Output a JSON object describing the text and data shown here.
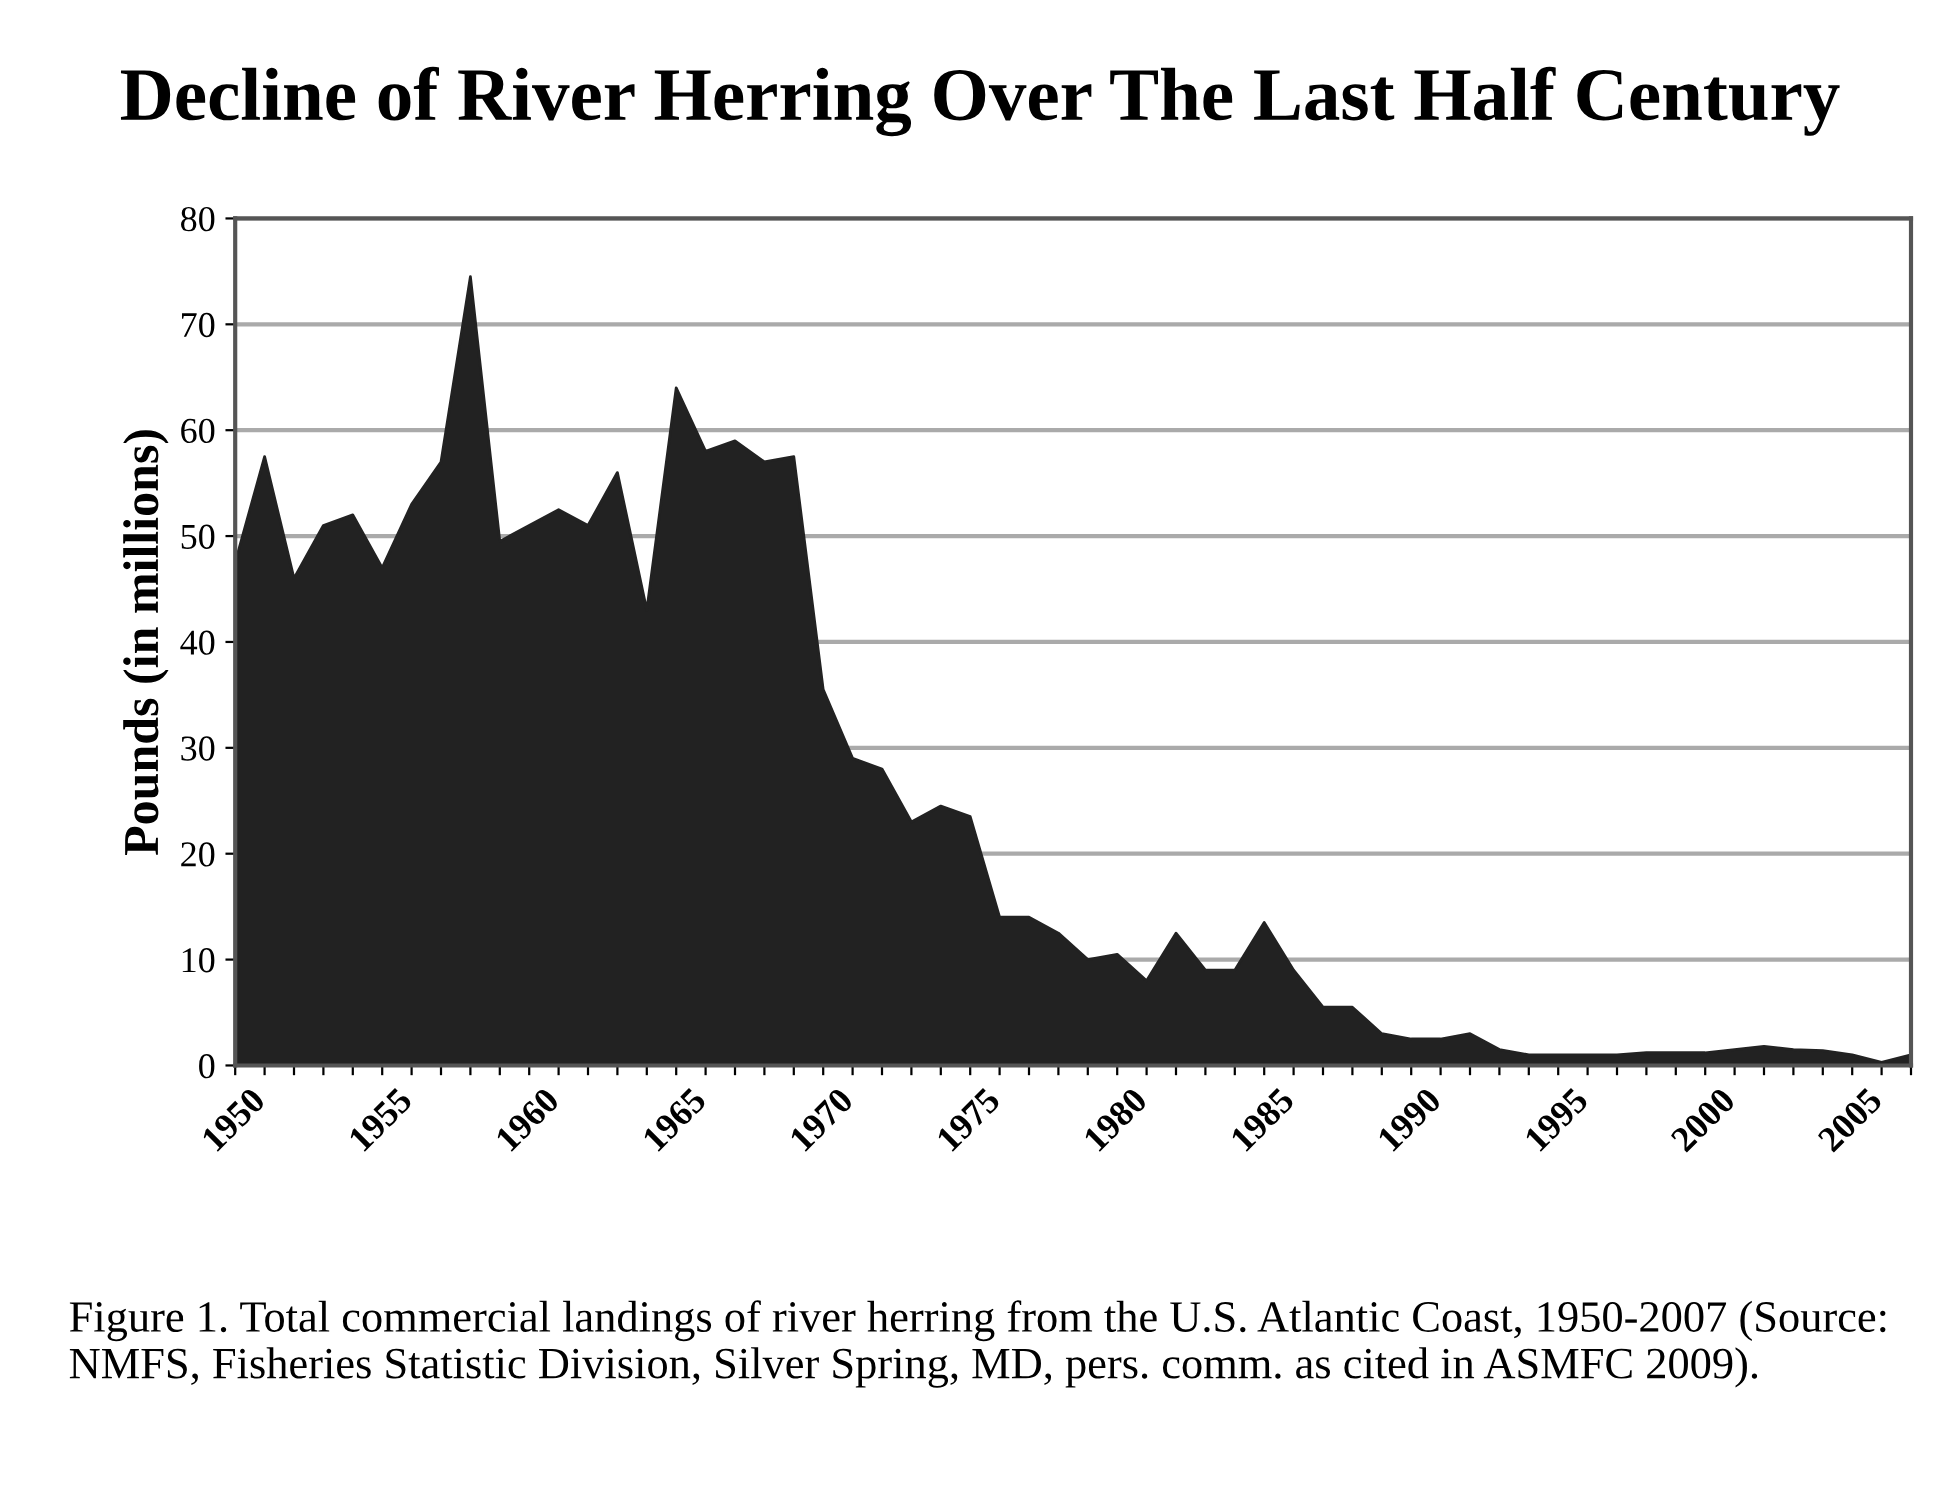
{
  "chart_data": {
    "type": "area",
    "title": "Decline of River Herring Over The Last Half Century",
    "ylabel": "Pounds (in millions)",
    "x": [
      1950,
      1951,
      1952,
      1953,
      1954,
      1955,
      1956,
      1957,
      1958,
      1959,
      1960,
      1961,
      1962,
      1963,
      1964,
      1965,
      1966,
      1967,
      1968,
      1969,
      1970,
      1971,
      1972,
      1973,
      1974,
      1975,
      1976,
      1977,
      1978,
      1979,
      1980,
      1981,
      1982,
      1983,
      1984,
      1985,
      1986,
      1987,
      1988,
      1989,
      1990,
      1991,
      1992,
      1993,
      1994,
      1995,
      1996,
      1997,
      1998,
      1999,
      2000,
      2001,
      2002,
      2003,
      2004,
      2005,
      2006,
      2007
    ],
    "series": [
      {
        "color": "#222222",
        "values": [
          47.5,
          57.5,
          46,
          51,
          52,
          47,
          53,
          57,
          74.5,
          49.5,
          51,
          52.5,
          51,
          56,
          43,
          64,
          58,
          59,
          57,
          57.5,
          35.5,
          29,
          28,
          23,
          24.5,
          23.5,
          14,
          14,
          12.5,
          10,
          10.5,
          8,
          12.5,
          9,
          9,
          13.5,
          9,
          5.5,
          5.5,
          3,
          2.5,
          2.5,
          3,
          1.5,
          1,
          1,
          1,
          1,
          1.2,
          1.2,
          1.2,
          1.5,
          1.8,
          1.5,
          1.4,
          1,
          0.3,
          1
        ]
      }
    ],
    "xlim": [
      1950,
      2007
    ],
    "xticks": [
      1950,
      {
        "value": 1951,
        "label": null
      },
      {
        "value": 1952,
        "label": null
      },
      {
        "value": 1953,
        "label": null
      },
      {
        "value": 1954,
        "label": null
      },
      1955,
      {
        "value": 1956,
        "label": null
      },
      {
        "value": 1957,
        "label": null
      },
      {
        "value": 1958,
        "label": null
      },
      {
        "value": 1959,
        "label": null
      },
      1960,
      {
        "value": 1961,
        "label": null
      },
      {
        "value": 1962,
        "label": null
      },
      {
        "value": 1963,
        "label": null
      },
      {
        "value": 1964,
        "label": null
      },
      1965,
      {
        "value": 1966,
        "label": null
      },
      {
        "value": 1967,
        "label": null
      },
      {
        "value": 1968,
        "label": null
      },
      {
        "value": 1969,
        "label": null
      },
      1970,
      {
        "value": 1971,
        "label": null
      },
      {
        "value": 1972,
        "label": null
      },
      {
        "value": 1973,
        "label": null
      },
      {
        "value": 1974,
        "label": null
      },
      1975,
      {
        "value": 1976,
        "label": null
      },
      {
        "value": 1977,
        "label": null
      },
      {
        "value": 1978,
        "label": null
      },
      {
        "value": 1979,
        "label": null
      },
      1980,
      {
        "value": 1981,
        "label": null
      },
      {
        "value": 1982,
        "label": null
      },
      {
        "value": 1983,
        "label": null
      },
      {
        "value": 1984,
        "label": null
      },
      1985,
      {
        "value": 1986,
        "label": null
      },
      {
        "value": 1987,
        "label": null
      },
      {
        "value": 1988,
        "label": null
      },
      {
        "value": 1989,
        "label": null
      },
      1990,
      {
        "value": 1991,
        "label": null
      },
      {
        "value": 1992,
        "label": null
      },
      {
        "value": 1993,
        "label": null
      },
      {
        "value": 1994,
        "label": null
      },
      1995,
      {
        "value": 1996,
        "label": null
      },
      {
        "value": 1997,
        "label": null
      },
      {
        "value": 1998,
        "label": null
      },
      {
        "value": 1999,
        "label": null
      },
      2000,
      {
        "value": 2001,
        "label": null
      },
      {
        "value": 2002,
        "label": null
      },
      {
        "value": 2003,
        "label": null
      },
      {
        "value": 2004,
        "label": null
      },
      2005,
      {
        "value": 2006,
        "label": null
      },
      {
        "value": 2007,
        "label": null
      }
    ],
    "ylim": [
      0,
      80
    ],
    "yticks": [
      0,
      10,
      20,
      30,
      40,
      50,
      60,
      70,
      80
    ],
    "grid": "y",
    "annotations": [
      "Figure 1. Total commercial landings of river herring from the U.S. Atlantic Coast, 1950-2007 (Source: NMFS, Fisheries Statistic Division, Silver Spring, MD, pers. comm. as cited in ASMFC 2009)."
    ]
  }
}
